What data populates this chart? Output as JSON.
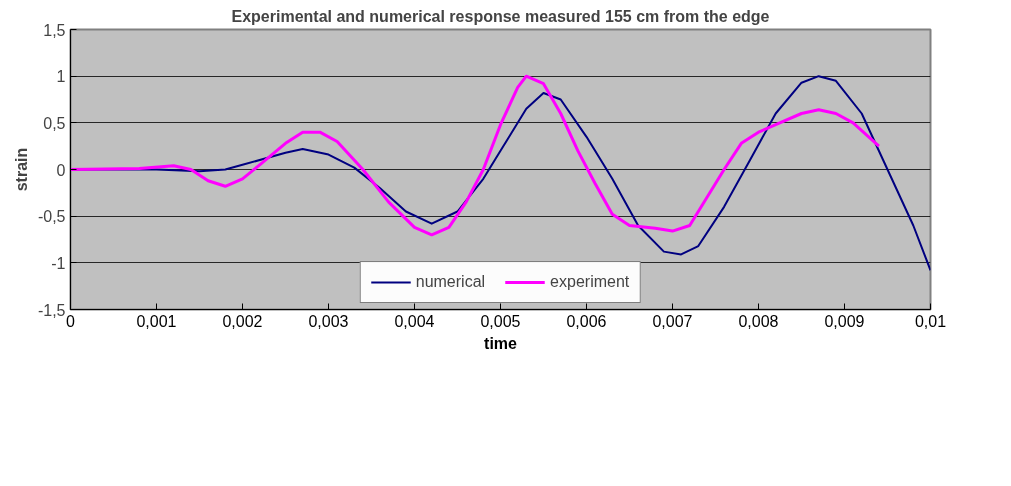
{
  "chart_data": {
    "type": "line",
    "title": "Experimental and numerical response measured 155 cm from the edge",
    "xlabel": "time",
    "ylabel": "strain",
    "xlim": [
      0,
      0.01
    ],
    "ylim": [
      -1.5,
      1.5
    ],
    "xticks": [
      {
        "value": 0,
        "label": "0"
      },
      {
        "value": 0.001,
        "label": "0,001"
      },
      {
        "value": 0.002,
        "label": "0,002"
      },
      {
        "value": 0.003,
        "label": "0,003"
      },
      {
        "value": 0.004,
        "label": "0,004"
      },
      {
        "value": 0.005,
        "label": "0,005"
      },
      {
        "value": 0.006,
        "label": "0,006"
      },
      {
        "value": 0.007,
        "label": "0,007"
      },
      {
        "value": 0.008,
        "label": "0,008"
      },
      {
        "value": 0.009,
        "label": "0,009"
      },
      {
        "value": 0.01,
        "label": "0,01"
      }
    ],
    "yticks": [
      {
        "value": -1.5,
        "label": "-1,5"
      },
      {
        "value": -1,
        "label": "-1"
      },
      {
        "value": -0.5,
        "label": "-0,5"
      },
      {
        "value": 0,
        "label": "0"
      },
      {
        "value": 0.5,
        "label": "0,5"
      },
      {
        "value": 1,
        "label": "1"
      },
      {
        "value": 1.5,
        "label": "1,5"
      }
    ],
    "grid": "y",
    "legend": "bottom",
    "marker": "none",
    "line_style": "solid",
    "series": [
      {
        "name": "numerical",
        "color": "#000080",
        "x": [
          0,
          0.001,
          0.0015,
          0.0018,
          0.002,
          0.0025,
          0.0027,
          0.003,
          0.0033,
          0.0036,
          0.0039,
          0.0042,
          0.0045,
          0.0048,
          0.005,
          0.0053,
          0.0055,
          0.0057,
          0.006,
          0.0063,
          0.0066,
          0.0069,
          0.0071,
          0.0073,
          0.0076,
          0.0079,
          0.0082,
          0.0085,
          0.0087,
          0.0089,
          0.0092,
          0.0095,
          0.0098,
          0.01
        ],
        "values": [
          0,
          0,
          -0.02,
          0,
          0.05,
          0.18,
          0.22,
          0.16,
          0.02,
          -0.2,
          -0.45,
          -0.58,
          -0.45,
          -0.1,
          0.2,
          0.65,
          0.82,
          0.75,
          0.35,
          -0.1,
          -0.6,
          -0.88,
          -0.91,
          -0.82,
          -0.4,
          0.1,
          0.6,
          0.93,
          1.0,
          0.95,
          0.6,
          0.0,
          -0.6,
          -1.08
        ]
      },
      {
        "name": "experiment",
        "color": "#ff00ff",
        "x": [
          0,
          0.0008,
          0.0012,
          0.0014,
          0.0016,
          0.0018,
          0.002,
          0.0022,
          0.0025,
          0.0027,
          0.0029,
          0.0031,
          0.0034,
          0.0037,
          0.004,
          0.0042,
          0.0044,
          0.0046,
          0.0048,
          0.005,
          0.0052,
          0.0053,
          0.0055,
          0.0057,
          0.0059,
          0.0061,
          0.0063,
          0.0065,
          0.0068,
          0.007,
          0.0072,
          0.0074,
          0.0076,
          0.0078,
          0.008,
          0.0082,
          0.0085,
          0.0087,
          0.0089,
          0.0091,
          0.0094
        ],
        "values": [
          0,
          0.01,
          0.04,
          0,
          -0.12,
          -0.18,
          -0.1,
          0.05,
          0.28,
          0.4,
          0.4,
          0.3,
          0.0,
          -0.35,
          -0.62,
          -0.7,
          -0.62,
          -0.35,
          0.0,
          0.48,
          0.88,
          1.0,
          0.92,
          0.6,
          0.2,
          -0.15,
          -0.48,
          -0.6,
          -0.63,
          -0.66,
          -0.6,
          -0.3,
          0.0,
          0.28,
          0.4,
          0.48,
          0.6,
          0.64,
          0.6,
          0.5,
          0.25
        ]
      }
    ]
  }
}
